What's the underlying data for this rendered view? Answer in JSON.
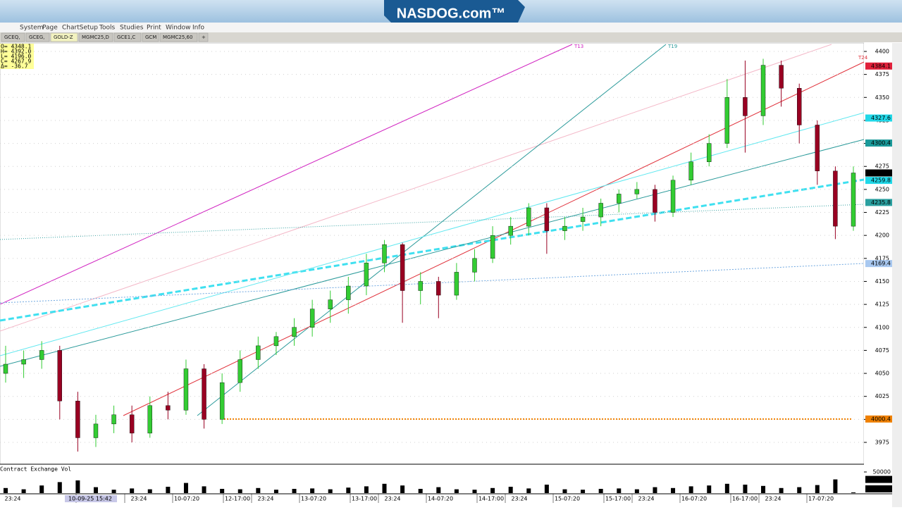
{
  "header": {
    "logo": "NASDOG.com™"
  },
  "menu": [
    "System",
    "Page",
    "ChartSetup",
    "Tools",
    "Studies",
    "Print",
    "Window",
    "Info"
  ],
  "tabs": [
    "GCEQ,",
    "GCEG,",
    "GOLD-Z",
    "MGMC25,D",
    "GCE1,C",
    "GCM",
    "MGMC25,60",
    "+"
  ],
  "ohlc": [
    "O= 4348.1",
    "H= 4392.0",
    "L= 4196.0",
    "C= 4267.9",
    "Δ= -36.7"
  ],
  "chart": {
    "ylim": [
      3950,
      4410
    ],
    "yticks": [
      3975,
      4000,
      4025,
      4050,
      4075,
      4100,
      4125,
      4150,
      4175,
      4200,
      4225,
      4250,
      4275,
      4300,
      4325,
      4350,
      4375,
      4400
    ],
    "candles": [
      [
        4050,
        4080,
        4040,
        4060
      ],
      [
        4060,
        4075,
        4045,
        4065
      ],
      [
        4065,
        4085,
        4055,
        4075
      ],
      [
        4075,
        4080,
        4000,
        4020
      ],
      [
        4020,
        4030,
        3965,
        3980
      ],
      [
        3980,
        4005,
        3970,
        3995
      ],
      [
        3995,
        4015,
        3985,
        4005
      ],
      [
        4005,
        4015,
        3975,
        3985
      ],
      [
        3985,
        4025,
        3980,
        4015
      ],
      [
        4015,
        4030,
        4000,
        4010
      ],
      [
        4010,
        4065,
        4005,
        4055
      ],
      [
        4055,
        4060,
        3990,
        4000
      ],
      [
        4000,
        4050,
        3995,
        4040
      ],
      [
        4040,
        4075,
        4030,
        4065
      ],
      [
        4065,
        4090,
        4055,
        4080
      ],
      [
        4080,
        4095,
        4070,
        4090
      ],
      [
        4090,
        4110,
        4080,
        4100
      ],
      [
        4100,
        4130,
        4090,
        4120
      ],
      [
        4120,
        4140,
        4105,
        4130
      ],
      [
        4130,
        4155,
        4115,
        4145
      ],
      [
        4145,
        4180,
        4135,
        4170
      ],
      [
        4170,
        4195,
        4160,
        4190
      ],
      [
        4190,
        4192,
        4105,
        4140
      ],
      [
        4140,
        4160,
        4125,
        4150
      ],
      [
        4150,
        4155,
        4110,
        4135
      ],
      [
        4135,
        4170,
        4130,
        4160
      ],
      [
        4160,
        4185,
        4150,
        4175
      ],
      [
        4175,
        4210,
        4170,
        4200
      ],
      [
        4200,
        4220,
        4190,
        4210
      ],
      [
        4210,
        4235,
        4200,
        4230
      ],
      [
        4230,
        4235,
        4180,
        4205
      ],
      [
        4205,
        4220,
        4195,
        4210
      ],
      [
        4215,
        4230,
        4205,
        4220
      ],
      [
        4220,
        4240,
        4210,
        4235
      ],
      [
        4235,
        4250,
        4225,
        4245
      ],
      [
        4245,
        4258,
        4240,
        4250
      ],
      [
        4250,
        4255,
        4215,
        4225
      ],
      [
        4225,
        4265,
        4220,
        4260
      ],
      [
        4260,
        4290,
        4255,
        4280
      ],
      [
        4280,
        4310,
        4275,
        4300
      ],
      [
        4300,
        4370,
        4295,
        4350
      ],
      [
        4350,
        4390,
        4290,
        4330
      ],
      [
        4330,
        4392,
        4320,
        4385
      ],
      [
        4385,
        4390,
        4340,
        4360
      ],
      [
        4360,
        4365,
        4300,
        4320
      ],
      [
        4320,
        4325,
        4255,
        4270
      ],
      [
        4270,
        4275,
        4196,
        4210
      ],
      [
        4210,
        4275,
        4205,
        4267.9
      ]
    ],
    "up_color": "#33cc33",
    "down_color": "#990022",
    "price_labels": [
      {
        "value": 4384.1,
        "color": "#e0203a"
      },
      {
        "value": 4327.6,
        "color": "#20d8e8"
      },
      {
        "value": 4300.4,
        "color": "#1a9a9a"
      },
      {
        "value": 4267.9,
        "color": "#000000"
      },
      {
        "value": 4259.8,
        "color": "#20d8e8"
      },
      {
        "value": 4235.8,
        "color": "#2aa0a0"
      },
      {
        "value": 4169.4,
        "color": "#a8c8f0"
      },
      {
        "value": 4000.4,
        "color": "#f08000"
      }
    ],
    "line_labels": [
      "T13",
      "T19",
      "T24"
    ]
  },
  "volume": {
    "title": "Contract Exchange Vol",
    "ylim": [
      0,
      60000
    ],
    "yticks": [
      50000
    ],
    "values": [
      12000,
      9000,
      18000,
      26000,
      30000,
      14000,
      8000,
      11000,
      9000,
      15000,
      24000,
      16000,
      10000,
      9000,
      12000,
      8000,
      10000,
      11000,
      9000,
      13000,
      16000,
      22000,
      18000,
      10000,
      14000,
      9000,
      8000,
      12000,
      15000,
      11000,
      20000,
      9000,
      8000,
      10000,
      11000,
      9000,
      14000,
      12000,
      16000,
      18000,
      22000,
      20000,
      17000,
      12000,
      14000,
      19000,
      32389,
      1634
    ],
    "color": "#000000",
    "labels": [
      {
        "value": 32389,
        "color": "#000000"
      },
      {
        "value": 1634,
        "color": "#000000"
      }
    ]
  },
  "time_labels": [
    "23:24",
    "10-09-25 15:42",
    "23:24",
    "10-07:20",
    "12-17:00",
    "23:24",
    "13-07:20",
    "13-17:00",
    "23:24",
    "14-07:20",
    "14-17:00",
    "23:24",
    "15-07:20",
    "15-17:00",
    "23:24",
    "16-07:20",
    "16-17:00",
    "23:24",
    "17-07:20"
  ]
}
